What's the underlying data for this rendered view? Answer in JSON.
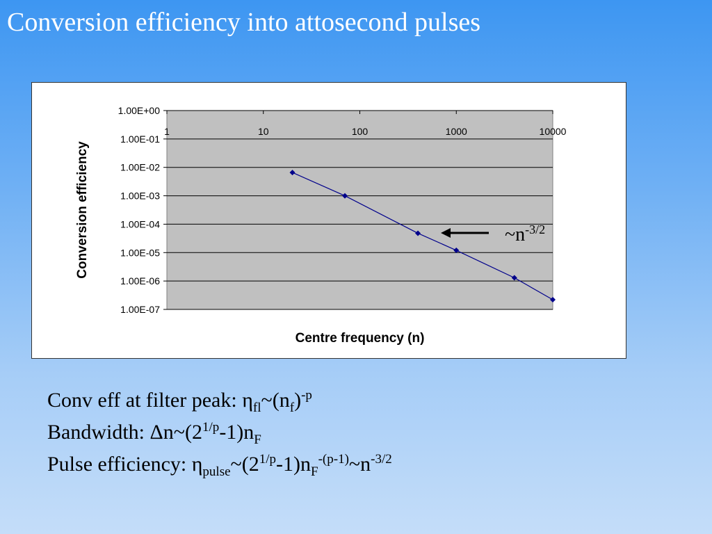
{
  "slide": {
    "title": "Conversion efficiency into attosecond pulses"
  },
  "chart_data": {
    "type": "scatter",
    "xscale": "log",
    "yscale": "log",
    "xlabel": "Centre frequency (n)",
    "ylabel": "Conversion efficiency",
    "xlim": [
      1,
      10000
    ],
    "ylim": [
      1e-07,
      1
    ],
    "x_ticks": [
      "1",
      "10",
      "100",
      "1000",
      "10000"
    ],
    "y_ticks": [
      "1.00E+00",
      "1.00E-01",
      "1.00E-02",
      "1.00E-03",
      "1.00E-04",
      "1.00E-05",
      "1.00E-06",
      "1.00E-07"
    ],
    "grid": "horizontal",
    "plot_background": "#c0c0c0",
    "series": [
      {
        "color": "#00008b",
        "marker": "diamond",
        "x": [
          20,
          70,
          400,
          1000,
          4000,
          10000
        ],
        "y": [
          0.0066,
          0.001,
          4.8e-05,
          1.2e-05,
          1.3e-06,
          2.2e-07
        ]
      }
    ],
    "annotation": {
      "text": "~n",
      "superscript": "-3/2",
      "arrow": "pointing-left"
    }
  },
  "notes": {
    "line1": {
      "prefix": "Conv eff at filter peak: ",
      "eta": "η",
      "sub1": "fl",
      "mid": "~(n",
      "sub2": "f",
      "close": ")",
      "sup": "-p"
    },
    "line2": {
      "prefix": "Bandwidth: ",
      "delta": "Δ",
      "mid": "n~(2",
      "sup": "1/p",
      "tail": "-1)n",
      "sub": "F"
    },
    "line3": {
      "prefix": "Pulse efficiency: ",
      "eta": "η",
      "sub1": "pulse",
      "mid": "~(2",
      "sup1": "1/p",
      "tail": "-1)n",
      "sub2": "F",
      "sup2": "-(p-1)",
      "end": "~n",
      "sup3": "-3/2"
    }
  }
}
